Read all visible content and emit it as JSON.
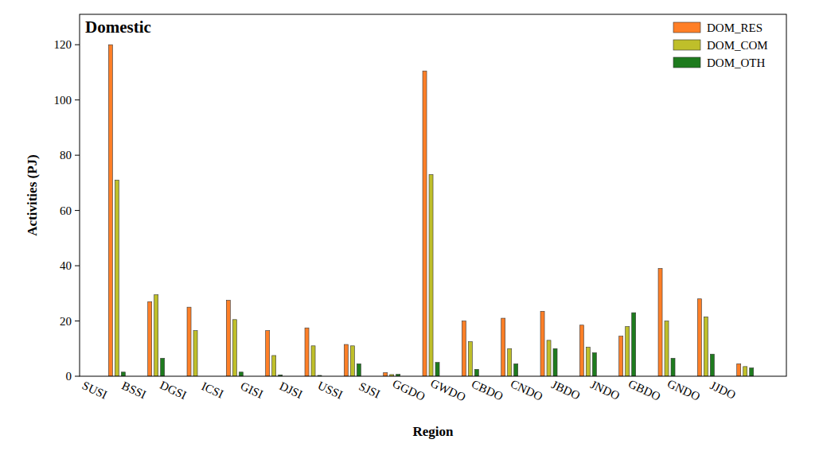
{
  "chart_data": {
    "type": "bar",
    "title": "Domestic",
    "x_label": "Region",
    "y_label": "Activities (PJ)",
    "categories": [
      "SUSI",
      "BSSI",
      "DGSI",
      "ICSI",
      "GISI",
      "DJSI",
      "USSI",
      "SJSI",
      "GGDO",
      "GWDO",
      "CBDO",
      "CNDO",
      "JBDO",
      "JNDO",
      "GBDO",
      "GNDO",
      "JJDO"
    ],
    "series": [
      {
        "name": "DOM_RES",
        "color": "#ff7f27",
        "values": [
          120,
          27,
          25,
          27.5,
          16.5,
          17.5,
          11.5,
          1.3,
          110.5,
          20,
          21,
          23.5,
          18.5,
          14.5,
          39,
          28,
          4.5
        ]
      },
      {
        "name": "DOM_COM",
        "color": "#bfbf2a",
        "values": [
          71,
          29.5,
          16.5,
          20.5,
          7.5,
          11,
          11,
          0.6,
          73,
          12.5,
          10,
          13,
          10.5,
          18,
          20,
          21.5,
          3.5
        ]
      },
      {
        "name": "DOM_OTH",
        "color": "#1e7b1e",
        "values": [
          1.5,
          6.5,
          0,
          1.5,
          0.5,
          0.3,
          4.5,
          0.7,
          5,
          2.5,
          4.5,
          10,
          8.5,
          23,
          6.5,
          8,
          3
        ]
      }
    ],
    "ylim": [
      0,
      131
    ],
    "yticks": [
      0,
      20,
      40,
      60,
      80,
      100,
      120
    ],
    "grid": false,
    "legend": "upper right"
  }
}
